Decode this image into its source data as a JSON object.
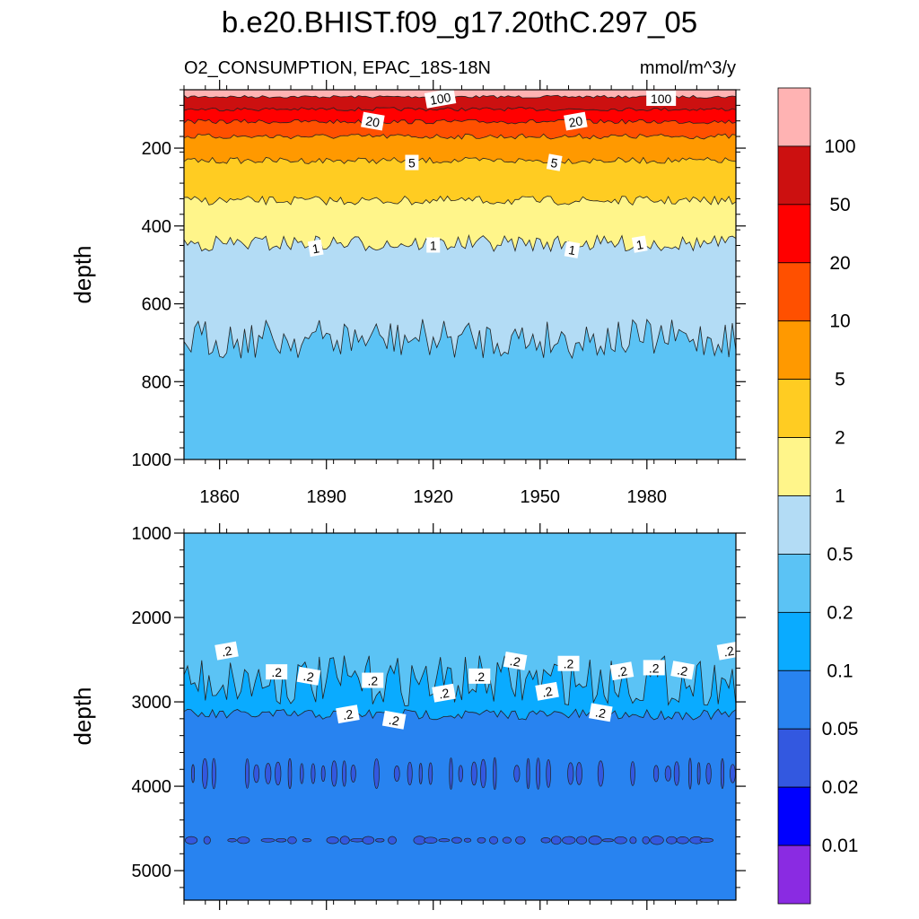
{
  "figure": {
    "title": "b.e20.BHIST.f09_g17.20thC.297_05"
  },
  "chart_data": [
    {
      "type": "heatmap",
      "panel": "upper",
      "subtitle_left": "O2_CONSUMPTION, EPAC_18S-18N",
      "subtitle_right": "mmol/m^3/y",
      "xlabel": "",
      "ylabel": "depth",
      "x_ticks": [
        1860,
        1890,
        1920,
        1950,
        1980
      ],
      "y_ticks": [
        200,
        400,
        600,
        800,
        1000
      ],
      "xlim": [
        1850,
        2005
      ],
      "ylim": [
        1000,
        50
      ],
      "y_reversed": true,
      "contour_depths": [
        {
          "level": 100,
          "depth": 68
        },
        {
          "level": 50,
          "depth": 100
        },
        {
          "level": 20,
          "depth": 132
        },
        {
          "level": 10,
          "depth": 170
        },
        {
          "level": 5,
          "depth": 232
        },
        {
          "level": 2,
          "depth": 335
        },
        {
          "level": 1,
          "depth": 445
        },
        {
          "level": 0.5,
          "depth": 690
        }
      ],
      "contour_labels": [
        {
          "text": "100",
          "year": 1922,
          "depth": 73
        },
        {
          "text": "100",
          "year": 1984,
          "depth": 73
        },
        {
          "text": "20",
          "year": 1903,
          "depth": 132
        },
        {
          "text": "20",
          "year": 1960,
          "depth": 132
        },
        {
          "text": "5",
          "year": 1914,
          "depth": 238
        },
        {
          "text": "5",
          "year": 1954,
          "depth": 238
        },
        {
          "text": "1",
          "year": 1887,
          "depth": 458
        },
        {
          "text": "1",
          "year": 1920,
          "depth": 450
        },
        {
          "text": "1",
          "year": 1959,
          "depth": 462
        },
        {
          "text": "1",
          "year": 1978,
          "depth": 448
        }
      ]
    },
    {
      "type": "heatmap",
      "panel": "lower",
      "xlabel": "",
      "ylabel": "depth",
      "y_ticks": [
        1000,
        2000,
        3000,
        4000,
        5000
      ],
      "xlim": [
        1850,
        2005
      ],
      "ylim": [
        5350,
        1000
      ],
      "y_reversed": true,
      "contour_depths": [
        {
          "level": 0.2,
          "depth": 2750
        },
        {
          "level": 0.1,
          "depth": 3150
        }
      ],
      "contour_labels": [
        {
          "text": ".2",
          "year": 1862,
          "depth": 2400
        },
        {
          "text": ".2",
          "year": 1876,
          "depth": 2650
        },
        {
          "text": ".2",
          "year": 1885,
          "depth": 2700
        },
        {
          "text": ".2",
          "year": 1896,
          "depth": 3150
        },
        {
          "text": ".2",
          "year": 1903,
          "depth": 2750
        },
        {
          "text": ".2",
          "year": 1909,
          "depth": 3220
        },
        {
          "text": ".2",
          "year": 1923,
          "depth": 2900
        },
        {
          "text": ".2",
          "year": 1933,
          "depth": 2700
        },
        {
          "text": ".2",
          "year": 1943,
          "depth": 2520
        },
        {
          "text": ".2",
          "year": 1952,
          "depth": 2880
        },
        {
          "text": ".2",
          "year": 1958,
          "depth": 2550
        },
        {
          "text": ".2",
          "year": 1967,
          "depth": 3130
        },
        {
          "text": ".2",
          "year": 1973,
          "depth": 2640
        },
        {
          "text": ".2",
          "year": 1982,
          "depth": 2600
        },
        {
          "text": ".2",
          "year": 1990,
          "depth": 2630
        },
        {
          "text": ".2",
          "year": 2003,
          "depth": 2400
        }
      ]
    }
  ],
  "colorbar": {
    "tick_labels": [
      "100",
      "50",
      "20",
      "10",
      "5",
      "2",
      "1",
      "0.5",
      "0.2",
      "0.1",
      "0.05",
      "0.02",
      "0.01"
    ],
    "colors_top_to_bottom": [
      "#ffb3b3",
      "#cc1010",
      "#ff0000",
      "#ff5000",
      "#ff9900",
      "#ffcc22",
      "#fff58a",
      "#b3dcf5",
      "#5bc3f5",
      "#0aabff",
      "#2883f0",
      "#3358e0",
      "#0000ff",
      "#8a2be2"
    ]
  }
}
